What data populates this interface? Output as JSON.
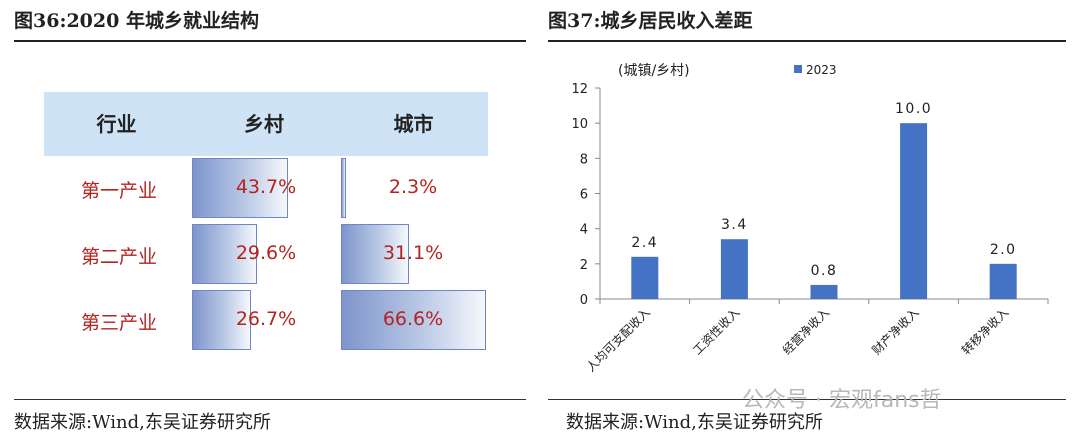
{
  "left": {
    "title": "图36:2020 年城乡就业结构",
    "table": {
      "headers": [
        "行业",
        "乡村",
        "城市"
      ],
      "rows": [
        {
          "label": "第一产业",
          "rural": "43.7%",
          "rural_value": 43.7,
          "urban": "2.3%",
          "urban_value": 2.3
        },
        {
          "label": "第二产业",
          "rural": "29.6%",
          "rural_value": 29.6,
          "urban": "31.1%",
          "urban_value": 31.1
        },
        {
          "label": "第三产业",
          "rural": "26.7%",
          "rural_value": 26.7,
          "urban": "66.6%",
          "urban_value": 66.6
        }
      ]
    },
    "source": "数据来源:Wind,东吴证券研究所"
  },
  "right": {
    "title": "图37:城乡居民收入差距",
    "source": "数据来源:Wind,东吴证券研究所"
  },
  "watermark": "公众号 · 宏观fans哲",
  "colors": {
    "bar": "#4472c4",
    "header_bg": "#cfe3f7",
    "row_text": "#b3241f"
  },
  "chart_data": {
    "type": "bar",
    "title": "",
    "ylabel": "(城镇/乡村)",
    "categories": [
      "人均可支配收入",
      "工资性收入",
      "经营净收入",
      "财产净收入",
      "转移净收入"
    ],
    "series": [
      {
        "name": "2023",
        "values": [
          2.4,
          3.4,
          0.8,
          10.0,
          2.0
        ]
      }
    ],
    "data_labels": [
      "2.4",
      "3.4",
      "0.8",
      "10.0",
      "2.0"
    ],
    "ylim": [
      0,
      12
    ],
    "yticks": [
      0,
      2,
      4,
      6,
      8,
      10,
      12
    ],
    "grid": false,
    "legend": "top-center"
  }
}
